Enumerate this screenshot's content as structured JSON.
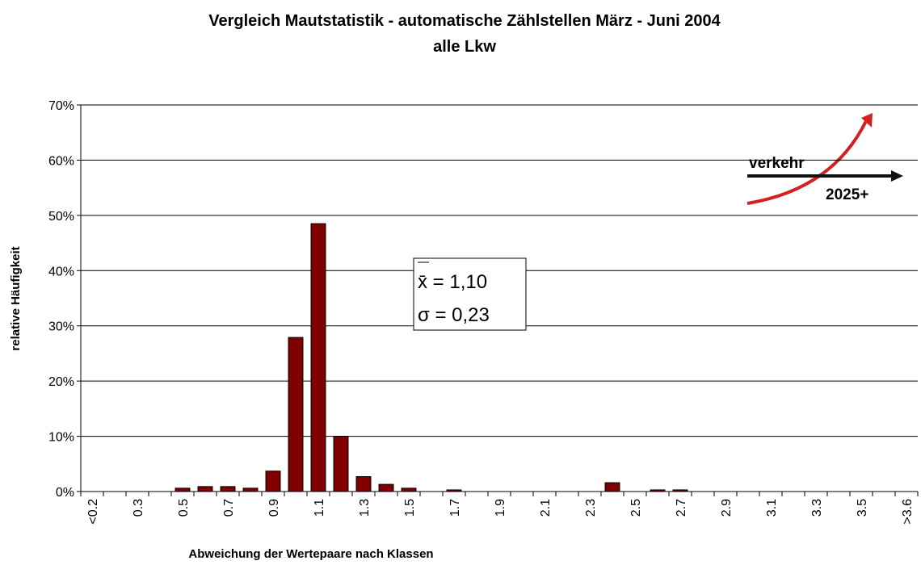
{
  "chart_data": {
    "type": "bar",
    "title": "Vergleich Mautstatistik - automatische Zählstellen März - Juni 2004",
    "subtitle": "alle Lkw",
    "x_label": "Abweichung der Wertepaare nach Klassen",
    "y_label": "relative Häufigkeit",
    "categories": [
      "<0.2",
      null,
      "0.3",
      null,
      "0.5",
      null,
      "0.7",
      null,
      "0.9",
      null,
      "1.1",
      null,
      "1.3",
      null,
      "1.5",
      null,
      "1.7",
      null,
      "1.9",
      null,
      "2.1",
      null,
      "2.3",
      null,
      "2.5",
      null,
      "2.7",
      null,
      "2.9",
      null,
      "3.1",
      null,
      "3.3",
      null,
      "3.5",
      null,
      ">3.6"
    ],
    "values": [
      0,
      0,
      0,
      0,
      0.6,
      0.9,
      0.9,
      0.6,
      3.7,
      27.9,
      48.5,
      10,
      2.7,
      1.3,
      0.6,
      0,
      0.3,
      0,
      0,
      0,
      0,
      0,
      0,
      1.6,
      0,
      0.3,
      0.3,
      0,
      0,
      0,
      0,
      0,
      0,
      0,
      0,
      0,
      0
    ],
    "color": "#800000",
    "ylim": [
      0,
      70
    ],
    "yticks": [
      {
        "value": 0,
        "label": "0%"
      },
      {
        "value": 10,
        "label": "10%"
      },
      {
        "value": 20,
        "label": "20%"
      },
      {
        "value": 30,
        "label": "30%"
      },
      {
        "value": 40,
        "label": "40%"
      },
      {
        "value": 50,
        "label": "50%"
      },
      {
        "value": 60,
        "label": "60%"
      },
      {
        "value": 70,
        "label": "70%"
      }
    ],
    "grid": true,
    "annotations": [
      "x̄ = 1,10",
      "σ = 0,23"
    ],
    "logo": [
      "verkehr",
      "2025+"
    ]
  }
}
